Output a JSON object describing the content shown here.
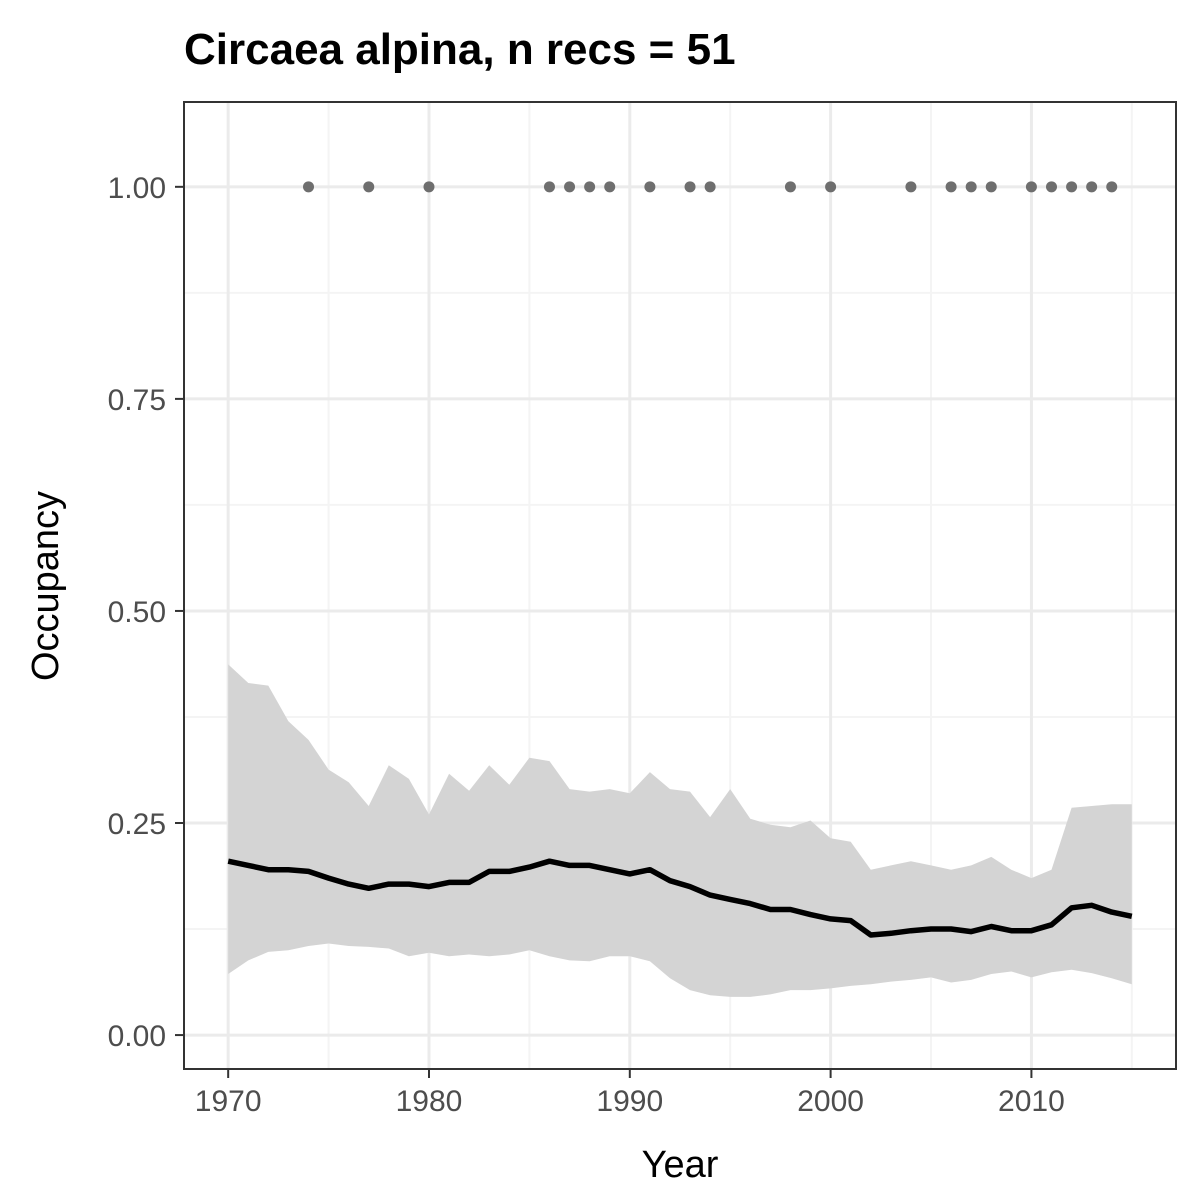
{
  "chart_data": {
    "type": "line",
    "title": "Circaea alpina, n recs = 51",
    "xlabel": "Year",
    "ylabel": "Occupancy",
    "xlim": [
      1967.8,
      2017.2
    ],
    "ylim": [
      -0.04,
      1.1
    ],
    "x_ticks": [
      1970,
      1980,
      1990,
      2000,
      2010
    ],
    "x_tick_labels": [
      "1970",
      "1980",
      "1990",
      "2000",
      "2010"
    ],
    "y_ticks": [
      0,
      0.25,
      0.5,
      0.75,
      1.0
    ],
    "y_tick_labels": [
      "0.00",
      "0.25",
      "0.50",
      "0.75",
      "1.00"
    ],
    "grid": true,
    "legend": "none",
    "colors": {
      "line": "#000000",
      "ribbon": "#d4d4d4",
      "points": "#6e6e6e",
      "grid_major": "#ebebeb",
      "grid_minor": "#f4f4f4",
      "panel_border": "#333333"
    },
    "series": [
      {
        "type": "line",
        "x": [
          1970,
          1971,
          1972,
          1973,
          1974,
          1975,
          1976,
          1977,
          1978,
          1979,
          1980,
          1981,
          1982,
          1983,
          1984,
          1985,
          1986,
          1987,
          1988,
          1989,
          1990,
          1991,
          1992,
          1993,
          1994,
          1995,
          1996,
          1997,
          1998,
          1999,
          2000,
          2001,
          2002,
          2003,
          2004,
          2005,
          2006,
          2007,
          2008,
          2009,
          2010,
          2011,
          2012,
          2013,
          2014,
          2015
        ],
        "y": [
          0.205,
          0.2,
          0.195,
          0.195,
          0.193,
          0.185,
          0.178,
          0.173,
          0.178,
          0.178,
          0.175,
          0.18,
          0.18,
          0.193,
          0.193,
          0.198,
          0.205,
          0.2,
          0.2,
          0.195,
          0.19,
          0.195,
          0.182,
          0.175,
          0.165,
          0.16,
          0.155,
          0.148,
          0.148,
          0.142,
          0.137,
          0.135,
          0.118,
          0.12,
          0.123,
          0.125,
          0.125,
          0.122,
          0.128,
          0.123,
          0.123,
          0.13,
          0.15,
          0.153,
          0.145,
          0.14
        ]
      },
      {
        "type": "ribbon",
        "x": [
          1970,
          1971,
          1972,
          1973,
          1974,
          1975,
          1976,
          1977,
          1978,
          1979,
          1980,
          1981,
          1982,
          1983,
          1984,
          1985,
          1986,
          1987,
          1988,
          1989,
          1990,
          1991,
          1992,
          1993,
          1994,
          1995,
          1996,
          1997,
          1998,
          1999,
          2000,
          2001,
          2002,
          2003,
          2004,
          2005,
          2006,
          2007,
          2008,
          2009,
          2010,
          2011,
          2012,
          2013,
          2014,
          2015
        ],
        "lower": [
          0.072,
          0.088,
          0.098,
          0.1,
          0.105,
          0.108,
          0.105,
          0.104,
          0.102,
          0.093,
          0.097,
          0.093,
          0.095,
          0.093,
          0.095,
          0.1,
          0.093,
          0.088,
          0.087,
          0.093,
          0.093,
          0.087,
          0.067,
          0.053,
          0.047,
          0.045,
          0.045,
          0.048,
          0.053,
          0.053,
          0.055,
          0.058,
          0.06,
          0.063,
          0.065,
          0.068,
          0.062,
          0.065,
          0.072,
          0.075,
          0.068,
          0.074,
          0.077,
          0.073,
          0.067,
          0.06
        ],
        "upper": [
          0.437,
          0.415,
          0.412,
          0.37,
          0.348,
          0.313,
          0.298,
          0.27,
          0.318,
          0.302,
          0.26,
          0.308,
          0.288,
          0.318,
          0.295,
          0.327,
          0.323,
          0.29,
          0.287,
          0.29,
          0.285,
          0.31,
          0.29,
          0.287,
          0.257,
          0.29,
          0.255,
          0.248,
          0.245,
          0.253,
          0.232,
          0.228,
          0.195,
          0.2,
          0.205,
          0.2,
          0.195,
          0.2,
          0.21,
          0.195,
          0.185,
          0.195,
          0.268,
          0.27,
          0.272,
          0.272
        ]
      },
      {
        "type": "scatter",
        "x": [
          1974,
          1977,
          1980,
          1986,
          1987,
          1988,
          1989,
          1991,
          1993,
          1994,
          1998,
          2000,
          2004,
          2006,
          2007,
          2008,
          2010,
          2011,
          2012,
          2013,
          2014
        ],
        "y": [
          1,
          1,
          1,
          1,
          1,
          1,
          1,
          1,
          1,
          1,
          1,
          1,
          1,
          1,
          1,
          1,
          1,
          1,
          1,
          1,
          1
        ]
      }
    ]
  }
}
